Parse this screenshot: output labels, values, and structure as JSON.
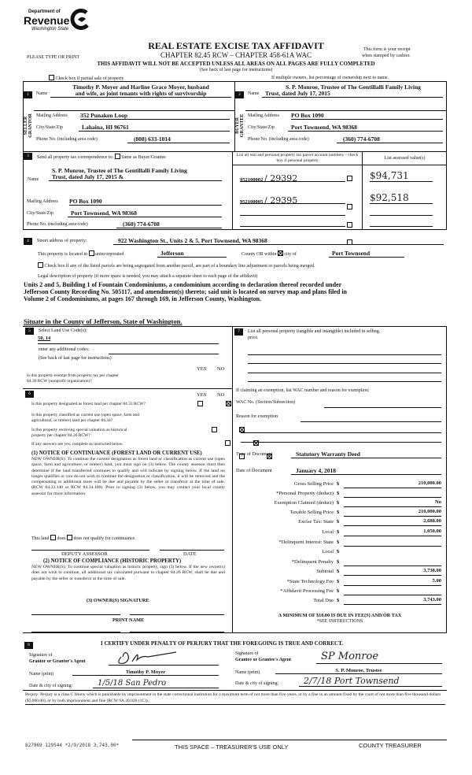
{
  "header": {
    "logo_line1": "Department of",
    "logo_line2": "Revenue",
    "logo_line3": "Washington State",
    "title": "REAL ESTATE EXCISE TAX AFFIDAVIT",
    "chapter": "CHAPTER 82.45 RCW – CHAPTER 458-61A WAC",
    "type_print": "PLEASE TYPE OR PRINT",
    "receipt1": "This form is your receipt",
    "receipt2": "when stamped by cashier.",
    "warning": "THIS AFFIDAVIT WILL NOT BE ACCEPTED UNLESS ALL AREAS ON ALL PAGES ARE FULLY COMPLETED",
    "see_back": "(See back of last page for instructions)",
    "partial_sale": "Check box if partial sale of property",
    "multiple_owners": "If multiple owners, list percentage of ownership next to name."
  },
  "seller": {
    "num": "1",
    "side_label1": "SELLER",
    "side_label2": "GRANTOR",
    "name_label": "Name",
    "name_line1": "Timothy P. Moyer and Harline Grace Moyer, husband",
    "name_line2": "and wife, as joint tenants with rights of survivorship",
    "mailing_label": "Mailing Address",
    "mailing": "352 Punaken Loop",
    "city_label": "City/State/Zip",
    "city": "Lahaina, HI 96761",
    "phone_label": "Phone No. (including area code)",
    "phone": "(808) 633-1014"
  },
  "buyer": {
    "num": "2",
    "side_label1": "BUYER",
    "side_label2": "GRANTEE",
    "name_label": "Name",
    "name_line1": "S. P. Monroe, Trustee of The Gentillalli Family Living",
    "name_line2": "Trust, dated July 17, 2015",
    "mailing_label": "Mailing Address",
    "mailing": "PO Box 1090",
    "city_label": "City/State/Zip",
    "city": "Port Townsend, WA 98368",
    "phone_label": "Phone No. (including area code)",
    "phone": "(360) 774-6708"
  },
  "correspondence": {
    "num": "3",
    "label": "Send all property tax correspondence to:",
    "same_label": "Same as Buyer/Grantee",
    "same_checked": false,
    "name_label": "Name",
    "name_line1": "S. P. Monroe, Trustee of The Gentillalli Family Living",
    "name_line2": "Trust, dated July 17, 2015 &",
    "mailing_label": "Mailing Address",
    "mailing": "PO Box 1090",
    "city_label": "City/State/Zip",
    "city": "Port Townsend, WA 98368",
    "phone_label": "Phone No. (including area code)",
    "phone": "(360) 774-6708"
  },
  "parcels": {
    "header": "List all real and personal property tax parcel account numbers – check box if personal property",
    "value_header": "List assessed value(s)",
    "rows": [
      {
        "number": "952100002",
        "handwritten": "/ 29392",
        "value": "$94,731"
      },
      {
        "number": "952100005",
        "handwritten": "/ 29395",
        "value": "$92,518"
      },
      {
        "number": "",
        "handwritten": "",
        "value": ""
      },
      {
        "number": "",
        "handwritten": "",
        "value": ""
      }
    ]
  },
  "property": {
    "num": "4",
    "street_label": "Street address of property:",
    "street": "922 Washington St., Units 2 & 5, Port Townsend, WA  98368",
    "located_label": "This property is located in",
    "unincorporated_label": "unincorporated",
    "county": "Jefferson",
    "county_label": "County OR  within",
    "city_label": "city of",
    "city": "Port Townsend",
    "segregated_label": "Check box if any of the listed parcels are being segregated from another parcel, are part of a boundary line adjustment or parcels being merged.",
    "legal_label": "Legal description of property (if more space is needed, you may attach a separate sheet to each page of the affidavit)",
    "legal_line1": "Units 2 and 5, Building 1 of Fountain Condominiums, a condominium according to declaration thereof recorded under",
    "legal_line2": "Jefferson County Recording No. 505117, and amendment(s) thereto; said unit is located on survey map and plans filed in",
    "legal_line3": "Volume 2 of Condominiums, at pages 167 through 169, in Jefferson County, Washington.",
    "situate": "Situate in the County of Jefferson, State of Washington."
  },
  "land_use": {
    "num": "5",
    "label": "Select Land Use Code(s):",
    "codes": "50, 14",
    "additional_label": "enter any additional codes:",
    "see_back": "(See back of last page for instructions)",
    "yes": "YES",
    "no": "NO",
    "exempt_q1": "Is this property exempt from property tax per chapter",
    "exempt_q2": "84.36 RCW (nonprofit organization)?"
  },
  "section6": {
    "num": "6",
    "yes": "YES",
    "no": "NO",
    "q1": "Is this property designated as forest land per chapter 84.33 RCW?",
    "q2a": "Is this property classified as current use (open space, farm and",
    "q2b": "agricultural, or timber) land per chapter 84.34?",
    "q3a": "Is  this  property  receiving  special  valuation  as  historical",
    "q3b": "property per chapter 84.26 RCW?",
    "if_yes": "If any answers are yes, complete as instructed below.",
    "notice1_title": "(1) NOTICE OF CONTINUANCE (FOREST LAND OR CURRENT USE)",
    "notice1_body": "NEW OWNER(S): To continue the current designation as forest land or classification as current use (open space, farm and agriculture, or timber) land, you must sign on (3) below. The county assessor must then determine if the land transferred continues to qualify and will indicate by signing below. If the land no longer qualifies or you do not wish to continue the designation or classification, it will be removed and the compensating or additional taxes will be due and payable by the seller or transferor at the time of sale. (RCW 84.33.140 or RCW 84.34.108). Prior to signing (3) below, you may contact your local county assessor for more information.",
    "this_land": "This land",
    "does": "does",
    "does_not": "does not qualify for continuance.",
    "deputy": "DEPUTY ASSESSOR",
    "date": "DATE",
    "notice2_title": "(2) NOTICE OF COMPLIANCE (HISTORIC PROPERTY)",
    "notice2_body": "NEW OWNER(S): To continue special valuation as historic property, sign (3) below. If the new owner(s) does not wish to continue, all additional tax calculated pursuant to chapter 84.26 RCW, shall be due and payable by the seller or transferor at the time of sale.",
    "owner_sig": "(3)  OWNER(S) SIGNATURE",
    "print_name": "PRINT NAME"
  },
  "section7": {
    "num": "7",
    "personal_label1": "List all personal property (tangible and intangible) included in selling",
    "personal_label2": "price.",
    "exemption_label": "If claiming an exemption, list WAC number and reason for exemption:",
    "wac_label": "WAC No. (Section/Subsection)",
    "reason_label": "Reason for exemption",
    "doc_type_label": "Type of Document",
    "doc_type": "Statutory Warranty Deed",
    "doc_date_label": "Date of Document",
    "doc_date": "January 4, 2018",
    "dollar": "$",
    "fees": [
      {
        "label": "Gross Selling Price",
        "value": "210,000.00"
      },
      {
        "label": "*Personal Property (deduct)",
        "value": ""
      },
      {
        "label": "Exemption Claimed (deduct)",
        "value": "No"
      },
      {
        "label": "Taxable Selling Price",
        "value": "210,000.00"
      },
      {
        "label": "Excise Tax:  State",
        "value": "2,688.00"
      },
      {
        "label": "Local",
        "value": "1,050.00"
      },
      {
        "label": "*Delinquent Interest:  State",
        "value": ""
      },
      {
        "label": "Local",
        "value": ""
      },
      {
        "label": "*Delinquent Penalty",
        "value": ""
      },
      {
        "label": "Subtotal",
        "value": "3,738.00"
      },
      {
        "label": "*State Technology Fee",
        "value": "5.00"
      },
      {
        "label": "*Affidavit Processing Fee",
        "value": ""
      },
      {
        "label": "Total Due",
        "value": "3,743.00"
      }
    ],
    "minimum": "A MINIMUM OF $10.00 IS DUE IN FEE(S) AND/OR TAX",
    "see_instructions": "*SEE INSTRUCTIONS"
  },
  "section8": {
    "num": "8",
    "certify": "I CERTIFY UNDER PENALTY OF PERJURY THAT THE FOREGOING IS TRUE AND CORRECT.",
    "grantor_sig_label1": "Signature of",
    "grantor_sig_label2": "Grantor or Grantor's Agent",
    "grantee_sig_label1": "Signature of",
    "grantee_sig_label2": "Grantee or Grantee's Agent",
    "grantee_signature": "SP Monroe",
    "name_print_label": "Name (print)",
    "grantor_name": "Timothy P. Moyer",
    "grantee_name": "S. P. Monroe, Trustee",
    "date_city_label": "Date & city of signing:",
    "grantor_date_city": "1/5/18  San Pedro",
    "grantee_date_city": "2/7/18  Port Townsend",
    "perjury": "Perjury:  Perjury is a class C felony which is punishable by imprisonment in the state correctional institution for a maximum term of not more than five years, or by a fine in an amount fixed by the court of not more than five thousand dollars ($5,000.00), or by both imprisonment and fine (RCW 9A.20.020 (1C))."
  },
  "treasurer": {
    "stamp": "827969 129544 *2/9/2018 3,743.00*",
    "label": "THIS SPACE – TREASURER'S USE ONLY",
    "county": "COUNTY TREASURER"
  }
}
